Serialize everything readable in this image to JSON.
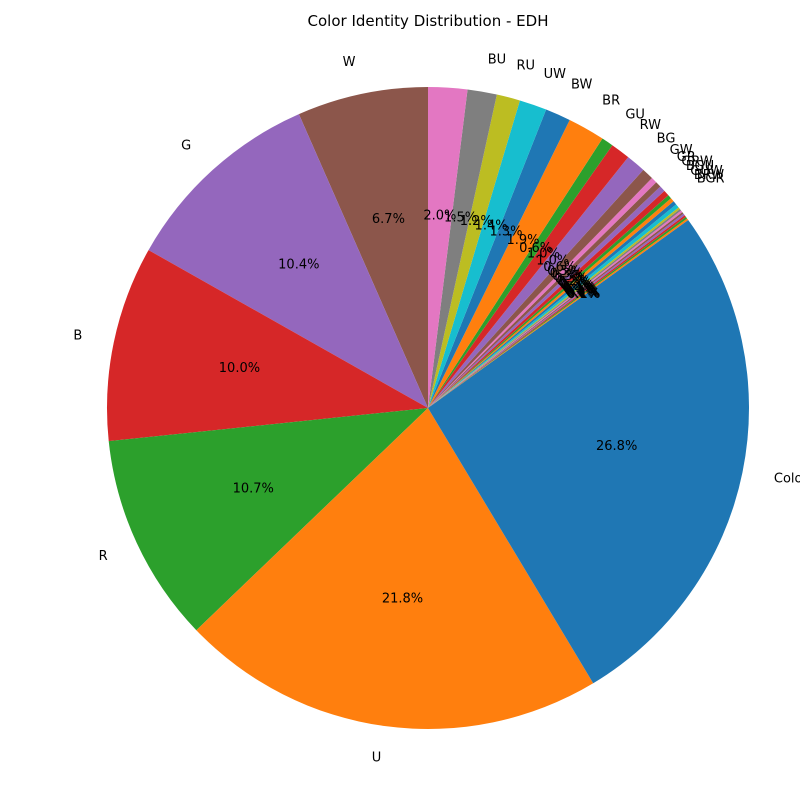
{
  "chart_data": {
    "type": "pie",
    "title": "Color Identity Distribution - EDH",
    "start_angle_deg": 90,
    "direction": "counterclockwise",
    "slices": [
      {
        "label": "W",
        "value": 6.7,
        "pct": "6.7%",
        "color": "#8c564b"
      },
      {
        "label": "G",
        "value": 10.4,
        "pct": "10.4%",
        "color": "#9467bd"
      },
      {
        "label": "B",
        "value": 10.0,
        "pct": "10.0%",
        "color": "#d62728"
      },
      {
        "label": "R",
        "value": 10.7,
        "pct": "10.7%",
        "color": "#2ca02c"
      },
      {
        "label": "U",
        "value": 21.8,
        "pct": "21.8%",
        "color": "#ff7f0e"
      },
      {
        "label": "Colorless",
        "value": 26.8,
        "pct": "26.8%",
        "color": "#1f77b4"
      },
      {
        "label": "",
        "value": 0.1,
        "pct": "0.1%",
        "color": "#ff7f0e"
      },
      {
        "label": "",
        "value": 0.1,
        "pct": "0.1%",
        "color": "#2ca02c"
      },
      {
        "label": "",
        "value": 0.1,
        "pct": "0.1%",
        "color": "#d62728"
      },
      {
        "label": "",
        "value": 0.1,
        "pct": "0.1%",
        "color": "#9467bd"
      },
      {
        "label": "",
        "value": 0.1,
        "pct": "0.1%",
        "color": "#8c564b"
      },
      {
        "label": "",
        "value": 0.1,
        "pct": "0.1%",
        "color": "#e377c2"
      },
      {
        "label": "",
        "value": 0.1,
        "pct": "0.1%",
        "color": "#7f7f7f"
      },
      {
        "label": "",
        "value": 0.1,
        "pct": "0.1%",
        "color": "#bcbd22"
      },
      {
        "label": "",
        "value": 0.2,
        "pct": "0.2%",
        "color": "#17becf"
      },
      {
        "label": "",
        "value": 0.2,
        "pct": "0.2%",
        "color": "#1f77b4"
      },
      {
        "label": "BGR",
        "value": 0.2,
        "pct": "0.2%",
        "color": "#ff7f0e"
      },
      {
        "label": "BRW",
        "value": 0.2,
        "pct": "0.2%",
        "color": "#2ca02c"
      },
      {
        "label": "GUW",
        "value": 0.3,
        "pct": "0.3%",
        "color": "#d62728"
      },
      {
        "label": "BGU",
        "value": 0.3,
        "pct": "0.3%",
        "color": "#9467bd"
      },
      {
        "label": "GRW",
        "value": 0.3,
        "pct": "0.3%",
        "color": "#8c564b"
      },
      {
        "label": "GR",
        "value": 0.3,
        "pct": "0.3%",
        "color": "#e377c2"
      },
      {
        "label": "GW",
        "value": 0.6,
        "pct": "0.6%",
        "color": "#8c564b"
      },
      {
        "label": "BG",
        "value": 1.0,
        "pct": "1.0%",
        "color": "#9467bd"
      },
      {
        "label": "RW",
        "value": 1.0,
        "pct": "1.0%",
        "color": "#d62728"
      },
      {
        "label": "GU",
        "value": 0.6,
        "pct": "0.6%",
        "color": "#2ca02c"
      },
      {
        "label": "BR",
        "value": 1.9,
        "pct": "1.9%",
        "color": "#ff7f0e"
      },
      {
        "label": "BW",
        "value": 1.3,
        "pct": "1.3%",
        "color": "#1f77b4"
      },
      {
        "label": "UW",
        "value": 1.4,
        "pct": "1.4%",
        "color": "#17becf"
      },
      {
        "label": "RU",
        "value": 1.2,
        "pct": "1.2%",
        "color": "#bcbd22"
      },
      {
        "label": "BU",
        "value": 1.5,
        "pct": "1.5%",
        "color": "#7f7f7f"
      },
      {
        "label": "",
        "value": 2.0,
        "pct": "2.0%",
        "color": "#e377c2"
      }
    ]
  }
}
